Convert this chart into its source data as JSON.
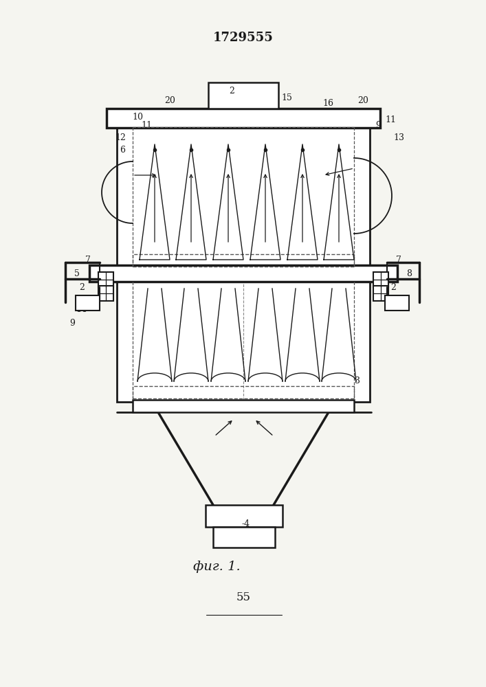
{
  "title": "1729555",
  "title_fontsize": 13,
  "caption": "фиг. 1.",
  "caption_fontsize": 14,
  "page_number": "55",
  "page_number_fontsize": 12,
  "bg_color": "#f5f5f0",
  "line_color": "#1a1a1a"
}
